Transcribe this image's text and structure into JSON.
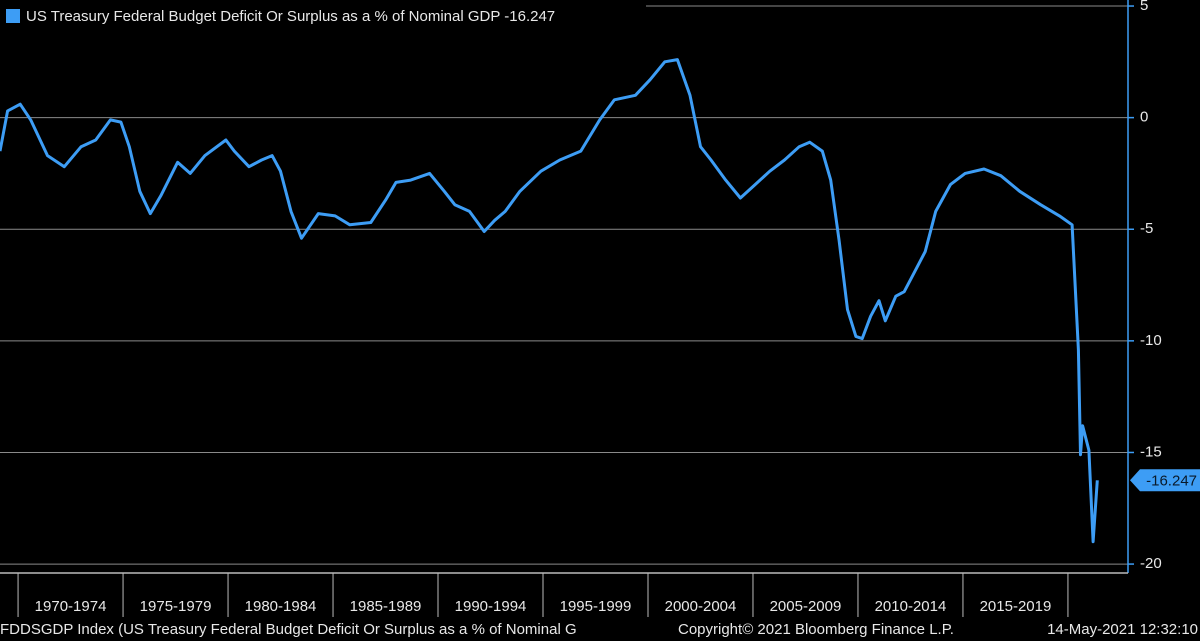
{
  "chart_data": {
    "type": "line",
    "series": [
      {
        "name": "US Treasury Federal Budget Deficit Or Surplus as a % of Nominal GDP",
        "color": "#3d9df5",
        "x": [
          1969.14,
          1969.5,
          1970.1,
          1970.6,
          1971.4,
          1972.2,
          1973.0,
          1973.7,
          1974.4,
          1974.9,
          1975.3,
          1975.8,
          1976.3,
          1976.8,
          1977.6,
          1978.2,
          1978.9,
          1979.9,
          1980.3,
          1981.0,
          1981.6,
          1982.1,
          1982.5,
          1983.0,
          1983.5,
          1984.3,
          1985.1,
          1985.8,
          1986.8,
          1987.5,
          1988.0,
          1988.7,
          1989.6,
          1990.3,
          1990.8,
          1991.5,
          1992.2,
          1992.7,
          1993.2,
          1993.9,
          1994.9,
          1995.8,
          1996.8,
          1997.7,
          1998.4,
          1999.4,
          2000.1,
          2000.8,
          2001.4,
          2002.0,
          2002.5,
          2003.0,
          2003.7,
          2004.4,
          2005.1,
          2005.8,
          2006.5,
          2007.2,
          2007.7,
          2008.3,
          2008.7,
          2009.1,
          2009.5,
          2009.9,
          2010.2,
          2010.6,
          2011.0,
          2011.3,
          2011.8,
          2012.2,
          2012.7,
          2013.2,
          2013.7,
          2014.4,
          2015.1,
          2016.0,
          2016.8,
          2017.7,
          2018.7,
          2019.6,
          2020.2,
          2020.5,
          2020.6,
          2020.7,
          2021.0,
          2021.2,
          2021.4
        ],
        "values": [
          -1.5,
          0.3,
          0.6,
          -0.1,
          -1.7,
          -2.2,
          -1.3,
          -1.0,
          -0.1,
          -0.2,
          -1.3,
          -3.3,
          -4.3,
          -3.5,
          -2.0,
          -2.5,
          -1.7,
          -1.0,
          -1.5,
          -2.2,
          -1.9,
          -1.7,
          -2.4,
          -4.2,
          -5.4,
          -4.3,
          -4.4,
          -4.8,
          -4.7,
          -3.7,
          -2.9,
          -2.8,
          -2.5,
          -3.3,
          -3.9,
          -4.2,
          -5.1,
          -4.6,
          -4.2,
          -3.3,
          -2.4,
          -1.9,
          -1.5,
          -0.1,
          0.8,
          1.0,
          1.7,
          2.5,
          2.6,
          1.0,
          -1.3,
          -1.9,
          -2.8,
          -3.6,
          -3.0,
          -2.4,
          -1.9,
          -1.3,
          -1.1,
          -1.5,
          -2.8,
          -5.5,
          -8.6,
          -9.8,
          -9.9,
          -8.9,
          -8.2,
          -9.1,
          -8.0,
          -7.8,
          -6.9,
          -6.0,
          -4.2,
          -3.0,
          -2.5,
          -2.3,
          -2.6,
          -3.3,
          -3.9,
          -4.4,
          -4.8,
          -10.4,
          -15.1,
          -13.8,
          -14.9,
          -19.0,
          -16.247
        ]
      }
    ],
    "xlim": [
      1969.14,
      2022.86
    ],
    "xticks": [
      1970,
      1975,
      1980,
      1985,
      1990,
      1995,
      2000,
      2005,
      2010,
      2015,
      2020
    ],
    "x_period_labels": [
      "1970-1974",
      "1975-1979",
      "1980-1984",
      "1985-1989",
      "1990-1994",
      "1995-1999",
      "2000-2004",
      "2005-2009",
      "2010-2014",
      "2015-2019"
    ],
    "ylim": [
      -20.4,
      5.27
    ],
    "yticks": [
      5,
      0,
      -5,
      -10,
      -15,
      -20
    ],
    "grid": true,
    "footer": {
      "left": "FDDSGDP Index (US Treasury Federal Budget Deficit Or Surplus as a % of Nominal G",
      "center": "Copyright© 2021 Bloomberg Finance L.P.",
      "right": "14-May-2021 12:32:10"
    }
  }
}
